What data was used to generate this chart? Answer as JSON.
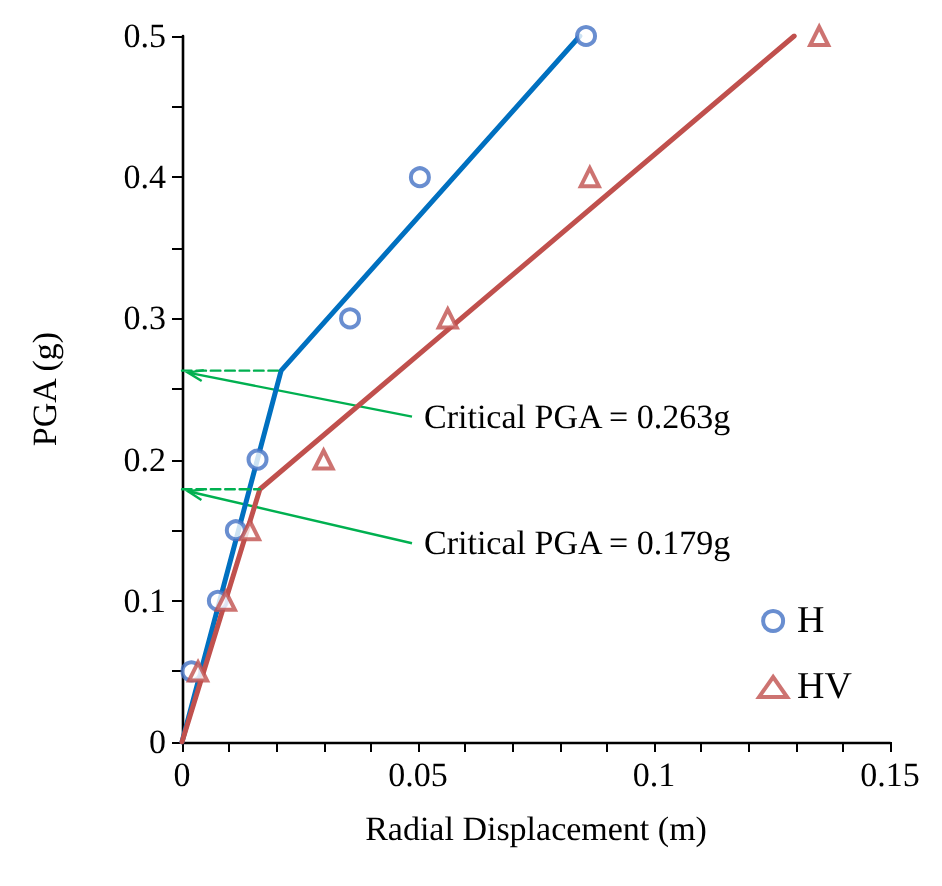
{
  "chart_data": {
    "type": "scatter",
    "xlabel": "Radial Displacement (m)",
    "ylabel": "PGA (g)",
    "series": [
      {
        "name": "H",
        "marker": "circle",
        "color": "#4472c4",
        "x": [
          0.002,
          0.0076,
          0.0114,
          0.016,
          0.0356,
          0.0504,
          0.0856
        ],
        "values": [
          0.05,
          0.1,
          0.15,
          0.2,
          0.3,
          0.4,
          0.5
        ]
      },
      {
        "name": "HV",
        "marker": "triangle",
        "color": "#c0504d",
        "x": [
          0.0034,
          0.0093,
          0.0144,
          0.03,
          0.0563,
          0.0864,
          0.135
        ],
        "values": [
          0.05,
          0.1,
          0.15,
          0.2,
          0.3,
          0.4,
          0.5
        ]
      },
      {
        "type": "line",
        "marker": "none",
        "color": "#0070c0",
        "x": [
          0,
          0.021,
          0.0843
        ],
        "values": [
          0,
          0.263,
          0.5
        ]
      },
      {
        "type": "line",
        "marker": "none",
        "color": "#c0504d",
        "x": [
          0,
          0.0165,
          0.1297
        ],
        "values": [
          0,
          0.179,
          0.5
        ]
      },
      {
        "type": "line",
        "marker": "none",
        "line_style": "dashed",
        "color": "#00b050",
        "x": [
          0,
          0.021
        ],
        "values": [
          0.263,
          0.263
        ]
      },
      {
        "type": "line",
        "marker": "none",
        "line_style": "dashed",
        "color": "#00b050",
        "x": [
          0,
          0.0165
        ],
        "values": [
          0.179,
          0.179
        ]
      }
    ],
    "annotations": [
      {
        "text": "Critical PGA = 0.263g",
        "x": 0,
        "y": 0.263
      },
      {
        "text": "Critical PGA = 0.179g",
        "x": 0,
        "y": 0.179
      }
    ],
    "xlim": [
      0,
      0.15
    ],
    "xticks": [
      0,
      {
        "value": 0.01,
        "label": null
      },
      {
        "value": 0.02,
        "label": null
      },
      {
        "value": 0.03,
        "label": null
      },
      {
        "value": 0.04,
        "label": null
      },
      0.05,
      {
        "value": 0.06,
        "label": null
      },
      {
        "value": 0.07,
        "label": null
      },
      {
        "value": 0.08,
        "label": null
      },
      {
        "value": 0.09,
        "label": null
      },
      0.1,
      {
        "value": 0.11,
        "label": null
      },
      {
        "value": 0.12,
        "label": null
      },
      {
        "value": 0.13,
        "label": null
      },
      {
        "value": 0.14,
        "label": null
      },
      0.15
    ],
    "ylim": [
      0,
      0.5
    ],
    "yticks": [
      0,
      {
        "value": 0.05,
        "label": null
      },
      0.1,
      {
        "value": 0.15,
        "label": null
      },
      0.2,
      {
        "value": 0.25,
        "label": null
      },
      0.3,
      {
        "value": 0.35,
        "label": null
      },
      0.4,
      {
        "value": 0.45,
        "label": null
      },
      0.5
    ],
    "grid": false,
    "legend": "bottom right"
  }
}
